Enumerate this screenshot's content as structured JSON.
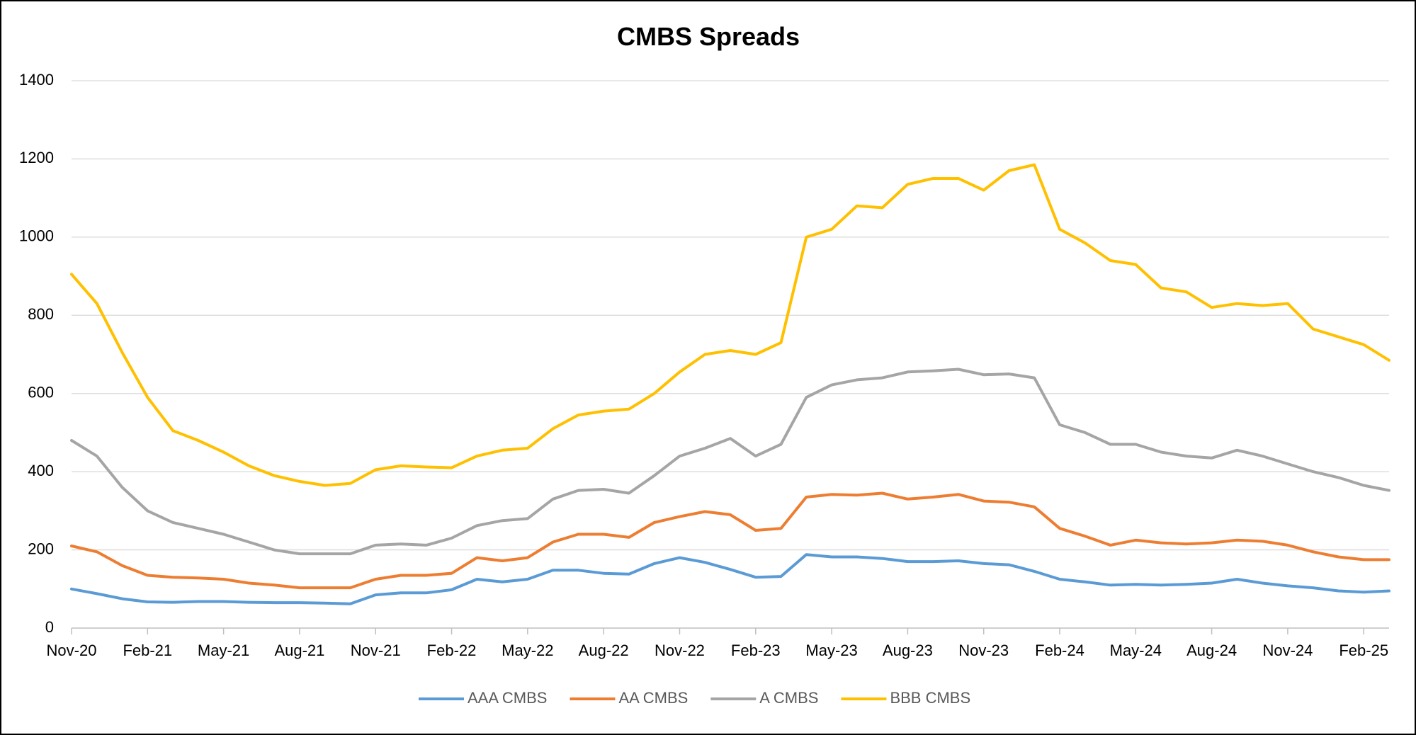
{
  "chart_data": {
    "type": "line",
    "title": "CMBS Spreads",
    "xlabel": "",
    "ylabel": "",
    "ylim": [
      0,
      1400
    ],
    "y_ticks": [
      "0",
      "200",
      "400",
      "600",
      "800",
      "1000",
      "1200",
      "1400"
    ],
    "xlim": [
      "2020-11",
      "2025-03"
    ],
    "x_tick_labels": [
      {
        "label": "Nov-20",
        "x": "2020-11"
      },
      {
        "label": "Feb-21",
        "x": "2021-02"
      },
      {
        "label": "May-21",
        "x": "2021-05"
      },
      {
        "label": "Aug-21",
        "x": "2021-08"
      },
      {
        "label": "Nov-21",
        "x": "2021-11"
      },
      {
        "label": "Feb-22",
        "x": "2022-02"
      },
      {
        "label": "May-22",
        "x": "2022-05"
      },
      {
        "label": "Aug-22",
        "x": "2022-08"
      },
      {
        "label": "Nov-22",
        "x": "2022-11"
      },
      {
        "label": "Feb-23",
        "x": "2023-02"
      },
      {
        "label": "May-23",
        "x": "2023-05"
      },
      {
        "label": "Aug-23",
        "x": "2023-08"
      },
      {
        "label": "Nov-23",
        "x": "2023-11"
      },
      {
        "label": "Feb-24",
        "x": "2024-02"
      },
      {
        "label": "May-24",
        "x": "2024-05"
      },
      {
        "label": "Aug-24",
        "x": "2024-08"
      },
      {
        "label": "Nov-24",
        "x": "2024-11"
      },
      {
        "label": "Feb-25",
        "x": "2025-02"
      }
    ],
    "grid": true,
    "legend_position": "bottom",
    "series": [
      {
        "name": "AAA CMBS",
        "color": "#5b9bd5",
        "points": [
          [
            "2020-11",
            100
          ],
          [
            "2020-12",
            88
          ],
          [
            "2021-01",
            75
          ],
          [
            "2021-02",
            67
          ],
          [
            "2021-03",
            66
          ],
          [
            "2021-04",
            68
          ],
          [
            "2021-05",
            68
          ],
          [
            "2021-06",
            66
          ],
          [
            "2021-07",
            65
          ],
          [
            "2021-08",
            65
          ],
          [
            "2021-09",
            64
          ],
          [
            "2021-10",
            62
          ],
          [
            "2021-11",
            85
          ],
          [
            "2021-12",
            90
          ],
          [
            "2022-01",
            90
          ],
          [
            "2022-02",
            98
          ],
          [
            "2022-03",
            125
          ],
          [
            "2022-04",
            118
          ],
          [
            "2022-05",
            125
          ],
          [
            "2022-06",
            148
          ],
          [
            "2022-07",
            148
          ],
          [
            "2022-08",
            140
          ],
          [
            "2022-09",
            138
          ],
          [
            "2022-10",
            165
          ],
          [
            "2022-11",
            180
          ],
          [
            "2022-12",
            168
          ],
          [
            "2023-01",
            150
          ],
          [
            "2023-02",
            130
          ],
          [
            "2023-03",
            132
          ],
          [
            "2023-04",
            188
          ],
          [
            "2023-05",
            182
          ],
          [
            "2023-06",
            182
          ],
          [
            "2023-07",
            178
          ],
          [
            "2023-08",
            170
          ],
          [
            "2023-09",
            170
          ],
          [
            "2023-10",
            172
          ],
          [
            "2023-11",
            165
          ],
          [
            "2023-12",
            162
          ],
          [
            "2024-01",
            145
          ],
          [
            "2024-02",
            125
          ],
          [
            "2024-03",
            118
          ],
          [
            "2024-04",
            110
          ],
          [
            "2024-05",
            112
          ],
          [
            "2024-06",
            110
          ],
          [
            "2024-07",
            112
          ],
          [
            "2024-08",
            115
          ],
          [
            "2024-09",
            125
          ],
          [
            "2024-10",
            115
          ],
          [
            "2024-11",
            108
          ],
          [
            "2024-12",
            103
          ],
          [
            "2025-01",
            95
          ],
          [
            "2025-02",
            92
          ],
          [
            "2025-03",
            95
          ]
        ]
      },
      {
        "name": "AA CMBS",
        "color": "#ed7d31",
        "points": [
          [
            "2020-11",
            210
          ],
          [
            "2020-12",
            195
          ],
          [
            "2021-01",
            160
          ],
          [
            "2021-02",
            135
          ],
          [
            "2021-03",
            130
          ],
          [
            "2021-04",
            128
          ],
          [
            "2021-05",
            125
          ],
          [
            "2021-06",
            115
          ],
          [
            "2021-07",
            110
          ],
          [
            "2021-08",
            103
          ],
          [
            "2021-09",
            103
          ],
          [
            "2021-10",
            103
          ],
          [
            "2021-11",
            125
          ],
          [
            "2021-12",
            135
          ],
          [
            "2022-01",
            135
          ],
          [
            "2022-02",
            140
          ],
          [
            "2022-03",
            180
          ],
          [
            "2022-04",
            172
          ],
          [
            "2022-05",
            180
          ],
          [
            "2022-06",
            220
          ],
          [
            "2022-07",
            240
          ],
          [
            "2022-08",
            240
          ],
          [
            "2022-09",
            232
          ],
          [
            "2022-10",
            270
          ],
          [
            "2022-11",
            285
          ],
          [
            "2022-12",
            298
          ],
          [
            "2023-01",
            290
          ],
          [
            "2023-02",
            250
          ],
          [
            "2023-03",
            255
          ],
          [
            "2023-04",
            335
          ],
          [
            "2023-05",
            342
          ],
          [
            "2023-06",
            340
          ],
          [
            "2023-07",
            345
          ],
          [
            "2023-08",
            330
          ],
          [
            "2023-09",
            335
          ],
          [
            "2023-10",
            342
          ],
          [
            "2023-11",
            325
          ],
          [
            "2023-12",
            322
          ],
          [
            "2024-01",
            310
          ],
          [
            "2024-02",
            255
          ],
          [
            "2024-03",
            235
          ],
          [
            "2024-04",
            212
          ],
          [
            "2024-05",
            225
          ],
          [
            "2024-06",
            218
          ],
          [
            "2024-07",
            215
          ],
          [
            "2024-08",
            218
          ],
          [
            "2024-09",
            225
          ],
          [
            "2024-10",
            222
          ],
          [
            "2024-11",
            212
          ],
          [
            "2024-12",
            195
          ],
          [
            "2025-01",
            182
          ],
          [
            "2025-02",
            175
          ],
          [
            "2025-03",
            175
          ]
        ]
      },
      {
        "name": "A CMBS",
        "color": "#a5a5a5",
        "points": [
          [
            "2020-11",
            480
          ],
          [
            "2020-12",
            440
          ],
          [
            "2021-01",
            360
          ],
          [
            "2021-02",
            300
          ],
          [
            "2021-03",
            270
          ],
          [
            "2021-04",
            255
          ],
          [
            "2021-05",
            240
          ],
          [
            "2021-06",
            220
          ],
          [
            "2021-07",
            200
          ],
          [
            "2021-08",
            190
          ],
          [
            "2021-09",
            190
          ],
          [
            "2021-10",
            190
          ],
          [
            "2021-11",
            212
          ],
          [
            "2021-12",
            215
          ],
          [
            "2022-01",
            212
          ],
          [
            "2022-02",
            230
          ],
          [
            "2022-03",
            262
          ],
          [
            "2022-04",
            275
          ],
          [
            "2022-05",
            280
          ],
          [
            "2022-06",
            330
          ],
          [
            "2022-07",
            352
          ],
          [
            "2022-08",
            355
          ],
          [
            "2022-09",
            345
          ],
          [
            "2022-10",
            390
          ],
          [
            "2022-11",
            440
          ],
          [
            "2022-12",
            460
          ],
          [
            "2023-01",
            485
          ],
          [
            "2023-02",
            440
          ],
          [
            "2023-03",
            470
          ],
          [
            "2023-04",
            590
          ],
          [
            "2023-05",
            622
          ],
          [
            "2023-06",
            635
          ],
          [
            "2023-07",
            640
          ],
          [
            "2023-08",
            655
          ],
          [
            "2023-09",
            658
          ],
          [
            "2023-10",
            662
          ],
          [
            "2023-11",
            648
          ],
          [
            "2023-12",
            650
          ],
          [
            "2024-01",
            640
          ],
          [
            "2024-02",
            520
          ],
          [
            "2024-03",
            500
          ],
          [
            "2024-04",
            470
          ],
          [
            "2024-05",
            470
          ],
          [
            "2024-06",
            450
          ],
          [
            "2024-07",
            440
          ],
          [
            "2024-08",
            435
          ],
          [
            "2024-09",
            455
          ],
          [
            "2024-10",
            440
          ],
          [
            "2024-11",
            420
          ],
          [
            "2024-12",
            400
          ],
          [
            "2025-01",
            385
          ],
          [
            "2025-02",
            365
          ],
          [
            "2025-03",
            352
          ]
        ]
      },
      {
        "name": "BBB CMBS",
        "color": "#ffc000",
        "points": [
          [
            "2020-11",
            905
          ],
          [
            "2020-12",
            830
          ],
          [
            "2021-01",
            705
          ],
          [
            "2021-02",
            590
          ],
          [
            "2021-03",
            505
          ],
          [
            "2021-04",
            480
          ],
          [
            "2021-05",
            450
          ],
          [
            "2021-06",
            415
          ],
          [
            "2021-07",
            390
          ],
          [
            "2021-08",
            375
          ],
          [
            "2021-09",
            365
          ],
          [
            "2021-10",
            370
          ],
          [
            "2021-11",
            405
          ],
          [
            "2021-12",
            415
          ],
          [
            "2022-01",
            412
          ],
          [
            "2022-02",
            410
          ],
          [
            "2022-03",
            440
          ],
          [
            "2022-04",
            455
          ],
          [
            "2022-05",
            460
          ],
          [
            "2022-06",
            510
          ],
          [
            "2022-07",
            545
          ],
          [
            "2022-08",
            555
          ],
          [
            "2022-09",
            560
          ],
          [
            "2022-10",
            600
          ],
          [
            "2022-11",
            655
          ],
          [
            "2022-12",
            700
          ],
          [
            "2023-01",
            710
          ],
          [
            "2023-02",
            700
          ],
          [
            "2023-03",
            730
          ],
          [
            "2023-04",
            1000
          ],
          [
            "2023-05",
            1020
          ],
          [
            "2023-06",
            1080
          ],
          [
            "2023-07",
            1075
          ],
          [
            "2023-08",
            1135
          ],
          [
            "2023-09",
            1150
          ],
          [
            "2023-10",
            1150
          ],
          [
            "2023-11",
            1120
          ],
          [
            "2023-12",
            1170
          ],
          [
            "2024-01",
            1185
          ],
          [
            "2024-02",
            1020
          ],
          [
            "2024-03",
            985
          ],
          [
            "2024-04",
            940
          ],
          [
            "2024-05",
            930
          ],
          [
            "2024-06",
            870
          ],
          [
            "2024-07",
            860
          ],
          [
            "2024-08",
            820
          ],
          [
            "2024-09",
            830
          ],
          [
            "2024-10",
            825
          ],
          [
            "2024-11",
            830
          ],
          [
            "2024-12",
            765
          ],
          [
            "2025-01",
            745
          ],
          [
            "2025-02",
            725
          ],
          [
            "2025-03",
            685
          ]
        ]
      }
    ]
  }
}
